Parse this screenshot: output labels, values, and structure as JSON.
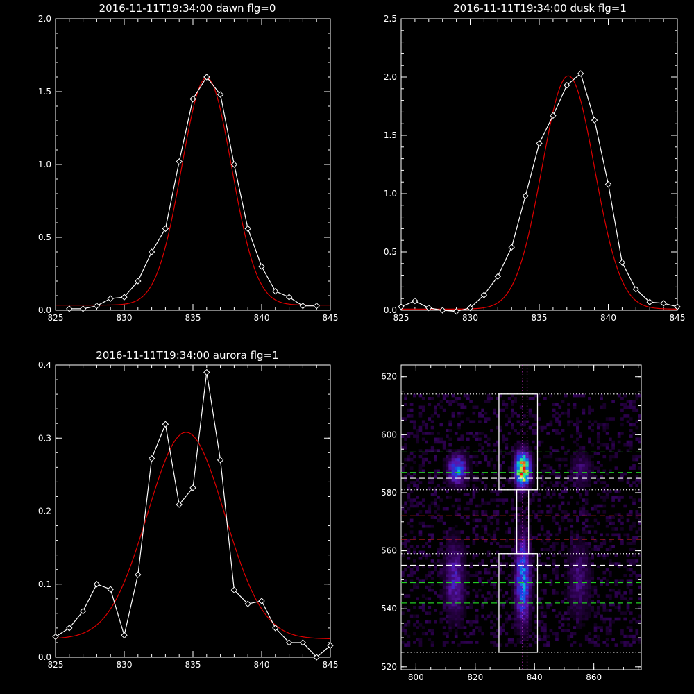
{
  "colors": {
    "background": "#000000",
    "axis": "#ffffff",
    "data": "#ffffff",
    "fit": "#dd0000",
    "green_line": "#22cc22",
    "red_line": "#dd2222",
    "magenta_line": "#ff44ff"
  },
  "chart_data": [
    {
      "type": "line",
      "title": "2016-11-11T19:34:00 dawn flg=0",
      "xlim": [
        825,
        845
      ],
      "ylim": [
        0,
        2.0
      ],
      "xticks": [
        "825",
        "830",
        "835",
        "840",
        "845"
      ],
      "yticks": [
        "0.0",
        "0.5",
        "1.0",
        "1.5",
        "2.0"
      ],
      "series": [
        {
          "x": [
            826,
            827,
            828,
            829,
            830,
            831,
            832,
            833,
            834,
            835,
            836,
            837,
            838,
            839,
            840,
            841,
            842,
            843,
            844
          ],
          "y": [
            0.01,
            0.01,
            0.03,
            0.08,
            0.09,
            0.2,
            0.4,
            0.56,
            1.02,
            1.45,
            1.6,
            1.48,
            1.0,
            0.56,
            0.3,
            0.13,
            0.09,
            0.03,
            0.03
          ]
        },
        {
          "fit": {
            "amp": 1.56,
            "center": 836.0,
            "sigma": 1.82,
            "base": 0.035,
            "xmin": 825,
            "xmax": 845
          }
        }
      ]
    },
    {
      "type": "line",
      "title": "2016-11-11T19:34:00 dusk flg=1",
      "xlim": [
        825,
        845
      ],
      "ylim": [
        0,
        2.5
      ],
      "xticks": [
        "825",
        "830",
        "835",
        "840",
        "845"
      ],
      "yticks": [
        "0.0",
        "0.5",
        "1.0",
        "1.5",
        "2.0",
        "2.5"
      ],
      "series": [
        {
          "x": [
            825,
            826,
            827,
            828,
            829,
            830,
            831,
            832,
            833,
            834,
            835,
            836,
            837,
            838,
            839,
            840,
            841,
            842,
            843,
            844,
            845
          ],
          "y": [
            0.03,
            0.08,
            0.02,
            0.0,
            -0.01,
            0.02,
            0.13,
            0.29,
            0.54,
            0.98,
            1.43,
            1.67,
            1.93,
            2.03,
            1.63,
            1.08,
            0.41,
            0.18,
            0.07,
            0.06,
            0.03
          ]
        },
        {
          "fit": {
            "amp": 2.0,
            "center": 837.1,
            "sigma": 1.9,
            "base": 0.01,
            "xmin": 825,
            "xmax": 845
          }
        }
      ]
    },
    {
      "type": "line",
      "title": "2016-11-11T19:34:00 aurora flg=1",
      "xlim": [
        825,
        845
      ],
      "ylim": [
        0,
        0.4
      ],
      "xticks": [
        "825",
        "830",
        "835",
        "840",
        "845"
      ],
      "yticks": [
        "0.0",
        "0.1",
        "0.2",
        "0.3",
        "0.4"
      ],
      "series": [
        {
          "x": [
            825,
            826,
            827,
            828,
            829,
            830,
            831,
            832,
            833,
            834,
            835,
            836,
            837,
            838,
            839,
            840,
            841,
            842,
            843,
            844,
            845
          ],
          "y": [
            0.028,
            0.04,
            0.063,
            0.1,
            0.093,
            0.03,
            0.113,
            0.272,
            0.319,
            0.209,
            0.232,
            0.39,
            0.27,
            0.092,
            0.073,
            0.077,
            0.04,
            0.02,
            0.02,
            0.0,
            0.016
          ]
        },
        {
          "fit": {
            "amp": 0.283,
            "center": 834.5,
            "sigma": 2.8,
            "base": 0.025,
            "xmin": 825,
            "xmax": 845
          }
        }
      ]
    },
    {
      "type": "heatmap",
      "xlim": [
        795,
        876
      ],
      "ylim": [
        519,
        624
      ],
      "xticks": [
        "800",
        "820",
        "840",
        "860"
      ],
      "yticks": [
        "520",
        "540",
        "560",
        "580",
        "600",
        "620"
      ],
      "blobs": [
        {
          "cx": 836,
          "cy": 588,
          "sx": 1.7,
          "sy": 4,
          "amp": 1.0
        },
        {
          "cx": 836,
          "cy": 550,
          "sx": 1.7,
          "sy": 10,
          "amp": 0.55
        },
        {
          "cx": 814,
          "cy": 588,
          "sx": 2.2,
          "sy": 3.5,
          "amp": 0.5
        },
        {
          "cx": 813,
          "cy": 550,
          "sx": 2.3,
          "sy": 9,
          "amp": 0.3
        },
        {
          "cx": 856,
          "cy": 588,
          "sx": 2.5,
          "sy": 4,
          "amp": 0.18
        },
        {
          "cx": 855,
          "cy": 550,
          "sx": 2.5,
          "sy": 9,
          "amp": 0.2
        }
      ],
      "boxes": [
        {
          "x0": 828,
          "x1": 841,
          "y0": 581,
          "y1": 614
        },
        {
          "x0": 828,
          "x1": 841,
          "y0": 525,
          "y1": 559
        },
        {
          "x0": 834,
          "x1": 838,
          "y0": 559,
          "y1": 581
        }
      ],
      "lines": [
        {
          "y": 594,
          "color": "green",
          "dash": "dashed"
        },
        {
          "y": 587,
          "color": "green",
          "dash": "dashed"
        },
        {
          "y": 585,
          "color": "white",
          "dash": "dashed"
        },
        {
          "y": 549,
          "color": "green",
          "dash": "dashed"
        },
        {
          "y": 542,
          "color": "green",
          "dash": "dashed"
        },
        {
          "y": 555,
          "color": "white",
          "dash": "dashed"
        },
        {
          "y": 572,
          "color": "red",
          "dash": "dashed"
        },
        {
          "y": 564,
          "color": "red",
          "dash": "dashed"
        },
        {
          "y": 614,
          "color": "white",
          "dash": "dotted"
        },
        {
          "y": 581,
          "color": "white",
          "dash": "dotted"
        },
        {
          "y": 559,
          "color": "white",
          "dash": "dotted"
        },
        {
          "y": 525,
          "color": "white",
          "dash": "dotted"
        }
      ],
      "vlines": [
        {
          "x": 836.0,
          "color": "magenta",
          "dash": "dotted"
        },
        {
          "x": 837.5,
          "color": "magenta",
          "dash": "dotted"
        }
      ]
    }
  ]
}
